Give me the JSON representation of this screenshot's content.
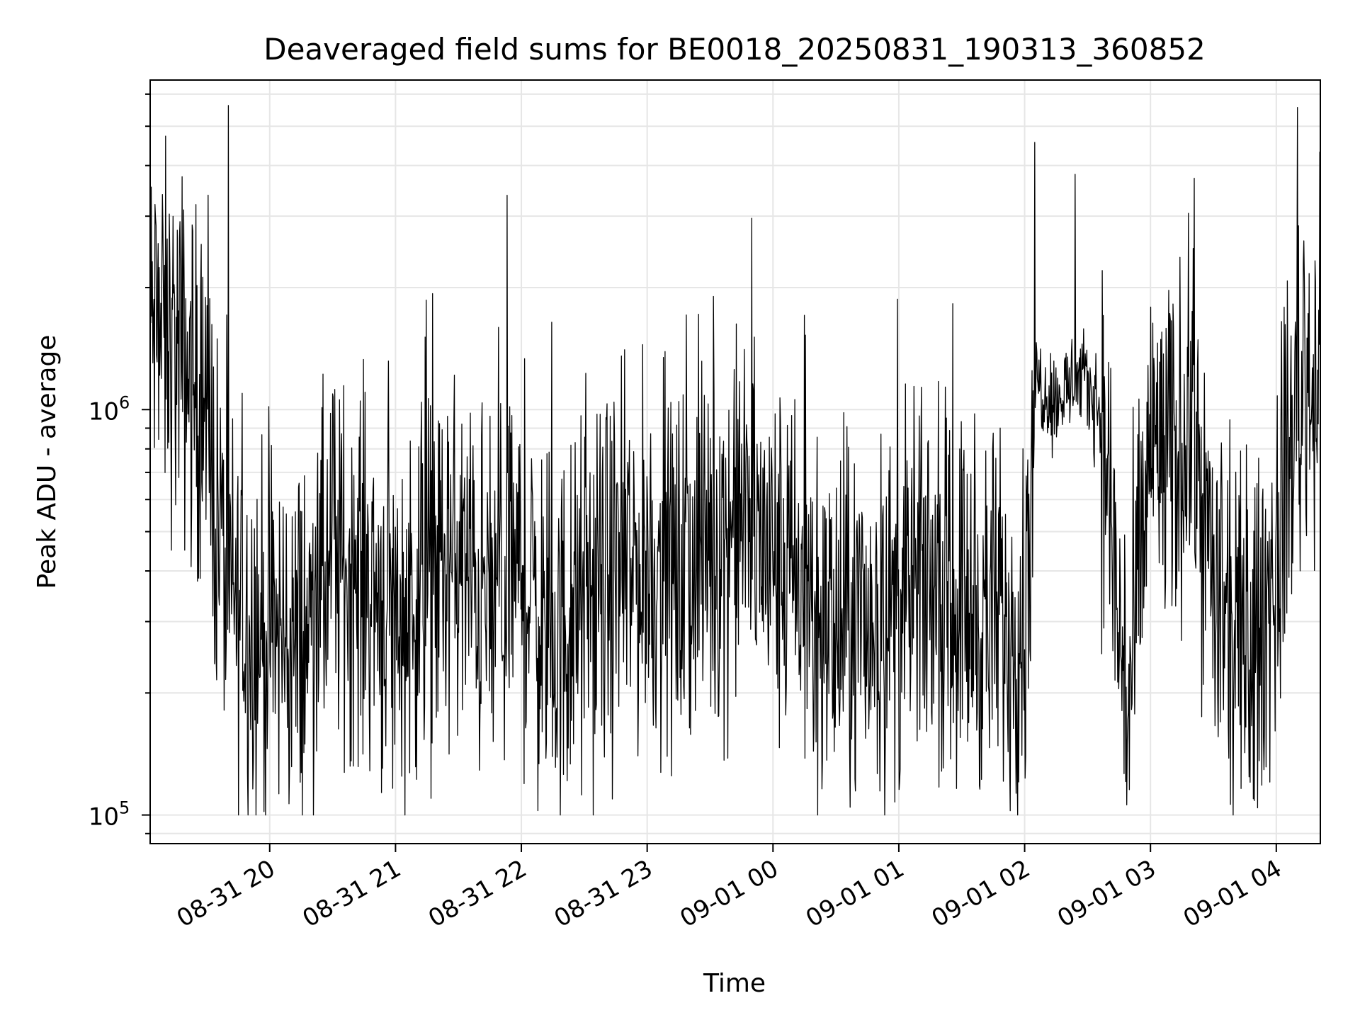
{
  "chart_data": {
    "type": "line",
    "title": "Deaveraged field sums for BE0018_20250831_190313_360852",
    "xlabel": "Time",
    "ylabel": "Peak ADU - average",
    "y_scale": "log",
    "ylim": [
      85000,
      6500000
    ],
    "xlim": [
      "2025-08-31 19:03",
      "2025-09-01 04:21"
    ],
    "grid": true,
    "line_color": "#000000",
    "x_ticks": [
      {
        "value": "2025-08-31 20:00",
        "label": "08-31 20"
      },
      {
        "value": "2025-08-31 21:00",
        "label": "08-31 21"
      },
      {
        "value": "2025-08-31 22:00",
        "label": "08-31 22"
      },
      {
        "value": "2025-08-31 23:00",
        "label": "08-31 23"
      },
      {
        "value": "2025-09-01 00:00",
        "label": "09-01 00"
      },
      {
        "value": "2025-09-01 01:00",
        "label": "09-01 01"
      },
      {
        "value": "2025-09-01 02:00",
        "label": "09-01 02"
      },
      {
        "value": "2025-09-01 03:00",
        "label": "09-01 03"
      },
      {
        "value": "2025-09-01 04:00",
        "label": "09-01 04"
      }
    ],
    "y_ticks": [
      {
        "value": 100000,
        "label_base": "10",
        "label_exp": "5"
      },
      {
        "value": 1000000,
        "label_base": "10",
        "label_exp": "6"
      }
    ],
    "series": [
      {
        "x": [
          "2025-08-31 19:03",
          "2025-08-31 19:10",
          "2025-08-31 19:20",
          "2025-08-31 19:30",
          "2025-08-31 19:40",
          "2025-08-31 19:50",
          "2025-08-31 20:00",
          "2025-08-31 20:15",
          "2025-08-31 20:30",
          "2025-08-31 20:45",
          "2025-08-31 21:00",
          "2025-08-31 21:15",
          "2025-08-31 21:30",
          "2025-08-31 21:45",
          "2025-08-31 22:00",
          "2025-08-31 22:15",
          "2025-08-31 22:30",
          "2025-08-31 22:45",
          "2025-08-31 23:00",
          "2025-08-31 23:15",
          "2025-08-31 23:30",
          "2025-08-31 23:45",
          "2025-09-01 00:00",
          "2025-09-01 00:15",
          "2025-09-01 00:30",
          "2025-09-01 00:45",
          "2025-09-01 01:00",
          "2025-09-01 01:15",
          "2025-09-01 01:30",
          "2025-09-01 01:45",
          "2025-09-01 02:00",
          "2025-09-01 02:05",
          "2025-09-01 02:15",
          "2025-09-01 02:25",
          "2025-09-01 02:35",
          "2025-09-01 02:40",
          "2025-09-01 02:45",
          "2025-09-01 02:50",
          "2025-09-01 03:00",
          "2025-09-01 03:10",
          "2025-09-01 03:20",
          "2025-09-01 03:30",
          "2025-09-01 03:40",
          "2025-09-01 03:50",
          "2025-09-01 04:00",
          "2025-09-01 04:10",
          "2025-09-01 04:21"
        ],
        "values": [
          1600000,
          1500000,
          1300000,
          900000,
          350000,
          300000,
          280000,
          260000,
          420000,
          400000,
          300000,
          380000,
          420000,
          320000,
          400000,
          250000,
          330000,
          380000,
          420000,
          380000,
          450000,
          560000,
          420000,
          330000,
          280000,
          300000,
          320000,
          380000,
          330000,
          300000,
          300000,
          1200000,
          1050000,
          1200000,
          1050000,
          650000,
          280000,
          180000,
          850000,
          700000,
          1000000,
          350000,
          250000,
          250000,
          420000,
          1100000,
          1300000
        ]
      }
    ]
  }
}
